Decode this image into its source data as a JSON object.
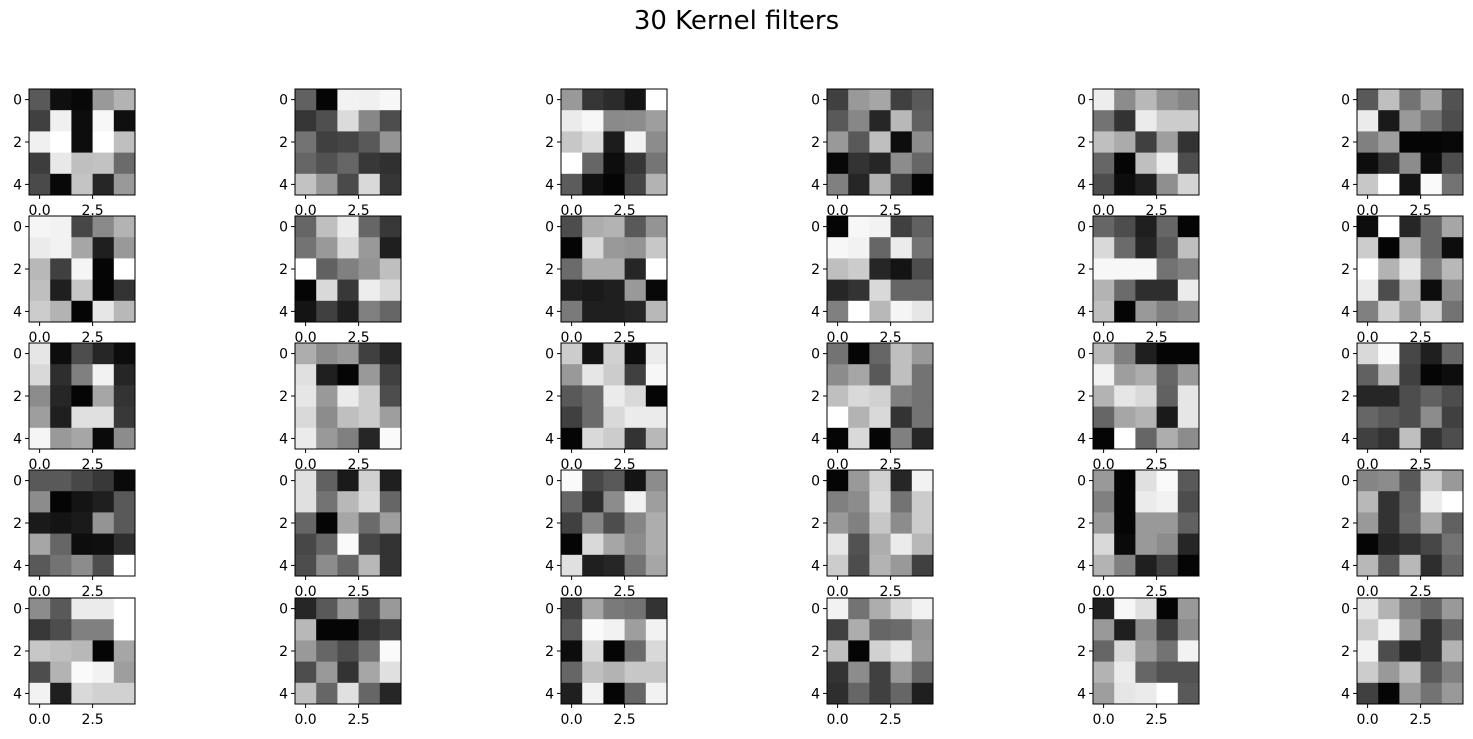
{
  "figure": {
    "title": "30 Kernel filters"
  },
  "chart_data": {
    "type": "heatmap",
    "title": "30 Kernel filters",
    "colormap": "gray",
    "grid": false,
    "subplot_layout": {
      "rows": 5,
      "cols": 6
    },
    "x_ticks": [
      "0.0",
      "2.5"
    ],
    "y_ticks": [
      "0",
      "2",
      "4"
    ],
    "xlim": [
      -0.5,
      4.5
    ],
    "ylim": [
      4.5,
      -0.5
    ],
    "value_range": [
      0,
      1
    ],
    "filters": [
      [
        [
          0.35,
          0.06,
          0.03,
          0.6,
          0.7
        ],
        [
          0.25,
          0.94,
          0.05,
          0.97,
          0.06
        ],
        [
          0.94,
          1.0,
          0.05,
          1.0,
          0.75
        ],
        [
          0.24,
          0.91,
          0.75,
          0.76,
          0.42
        ],
        [
          0.29,
          0.03,
          0.77,
          0.15,
          0.6
        ]
      ],
      [
        [
          0.38,
          0.02,
          0.95,
          0.94,
          0.97
        ],
        [
          0.21,
          0.31,
          0.86,
          0.53,
          0.3
        ],
        [
          0.45,
          0.25,
          0.27,
          0.35,
          0.58
        ],
        [
          0.4,
          0.32,
          0.4,
          0.22,
          0.19
        ],
        [
          0.76,
          0.59,
          0.29,
          0.85,
          0.21
        ]
      ],
      [
        [
          0.6,
          0.21,
          0.17,
          0.08,
          1.0
        ],
        [
          0.92,
          0.97,
          0.54,
          0.55,
          0.62
        ],
        [
          0.78,
          0.86,
          0.11,
          0.95,
          0.55
        ],
        [
          1.0,
          0.4,
          0.05,
          0.21,
          0.46
        ],
        [
          0.36,
          0.07,
          0.02,
          0.27,
          0.7
        ]
      ],
      [
        [
          0.25,
          0.6,
          0.65,
          0.25,
          0.35
        ],
        [
          0.35,
          0.53,
          0.15,
          0.72,
          0.38
        ],
        [
          0.6,
          0.35,
          0.75,
          0.05,
          0.55
        ],
        [
          0.03,
          0.2,
          0.15,
          0.55,
          0.4
        ],
        [
          0.5,
          0.15,
          0.7,
          0.25,
          0.02
        ]
      ],
      [
        [
          0.93,
          0.55,
          0.72,
          0.58,
          0.52
        ],
        [
          0.45,
          0.2,
          0.92,
          0.8,
          0.8
        ],
        [
          0.75,
          0.67,
          0.25,
          0.62,
          0.2
        ],
        [
          0.4,
          0.02,
          0.75,
          0.93,
          0.3
        ],
        [
          0.3,
          0.05,
          0.12,
          0.56,
          0.83
        ]
      ],
      [
        [
          0.35,
          0.75,
          0.45,
          0.65,
          0.32
        ],
        [
          0.92,
          0.1,
          0.6,
          0.45,
          0.3
        ],
        [
          0.5,
          0.62,
          0.02,
          0.02,
          0.03
        ],
        [
          0.05,
          0.2,
          0.55,
          0.05,
          0.3
        ],
        [
          0.78,
          1.0,
          0.08,
          0.98,
          0.45
        ]
      ],
      [
        [
          0.96,
          0.95,
          0.28,
          0.54,
          0.7
        ],
        [
          0.92,
          0.95,
          0.65,
          0.12,
          0.6
        ],
        [
          0.72,
          0.25,
          0.96,
          0.02,
          1.0
        ],
        [
          0.75,
          0.12,
          0.78,
          0.02,
          0.2
        ],
        [
          0.8,
          0.7,
          0.02,
          0.9,
          0.72
        ]
      ],
      [
        [
          0.4,
          0.75,
          0.92,
          0.4,
          0.22
        ],
        [
          0.45,
          0.6,
          0.85,
          0.6,
          0.12
        ],
        [
          1.0,
          0.38,
          0.5,
          0.58,
          0.75
        ],
        [
          0.02,
          0.85,
          0.22,
          0.93,
          0.85
        ],
        [
          0.08,
          0.25,
          0.12,
          0.5,
          0.4
        ]
      ],
      [
        [
          0.3,
          0.68,
          0.7,
          0.35,
          0.58
        ],
        [
          0.02,
          0.85,
          0.6,
          0.58,
          0.78
        ],
        [
          0.42,
          0.68,
          0.68,
          0.15,
          1.0
        ],
        [
          0.12,
          0.1,
          0.12,
          0.6,
          0.03
        ],
        [
          0.48,
          0.12,
          0.12,
          0.15,
          0.72
        ]
      ],
      [
        [
          0.02,
          0.97,
          0.95,
          0.25,
          0.38
        ],
        [
          0.97,
          0.95,
          0.4,
          0.92,
          0.45
        ],
        [
          0.75,
          0.8,
          0.15,
          0.08,
          0.3
        ],
        [
          0.15,
          0.2,
          0.85,
          0.4,
          0.4
        ],
        [
          0.5,
          1.0,
          0.72,
          0.96,
          0.9
        ]
      ],
      [
        [
          0.4,
          0.3,
          0.12,
          0.4,
          0.02
        ],
        [
          0.85,
          0.42,
          0.15,
          0.35,
          0.75
        ],
        [
          0.97,
          0.97,
          0.97,
          0.45,
          0.5
        ],
        [
          0.7,
          0.42,
          0.18,
          0.18,
          0.92
        ],
        [
          0.75,
          0.02,
          0.6,
          0.5,
          0.55
        ]
      ],
      [
        [
          0.05,
          1.0,
          0.15,
          0.4,
          0.65
        ],
        [
          0.8,
          0.02,
          0.7,
          0.4,
          0.05
        ],
        [
          1.0,
          0.7,
          0.9,
          0.5,
          0.72
        ],
        [
          0.92,
          0.3,
          0.72,
          0.05,
          0.55
        ],
        [
          0.5,
          0.82,
          0.6,
          0.82,
          0.45
        ]
      ],
      [
        [
          0.9,
          0.05,
          0.3,
          0.15,
          0.05
        ],
        [
          0.85,
          0.18,
          0.5,
          0.95,
          0.15
        ],
        [
          0.55,
          0.15,
          0.02,
          0.65,
          0.2
        ],
        [
          0.62,
          0.12,
          0.88,
          0.88,
          0.22
        ],
        [
          0.96,
          0.6,
          0.65,
          0.04,
          0.55
        ]
      ],
      [
        [
          0.68,
          0.55,
          0.6,
          0.25,
          0.15
        ],
        [
          0.88,
          0.12,
          0.02,
          0.6,
          0.25
        ],
        [
          0.9,
          0.6,
          0.92,
          0.8,
          0.3
        ],
        [
          0.85,
          0.55,
          0.75,
          0.8,
          0.62
        ],
        [
          0.92,
          0.6,
          0.5,
          0.15,
          0.98
        ]
      ],
      [
        [
          0.8,
          0.08,
          0.82,
          0.05,
          0.92
        ],
        [
          0.6,
          0.9,
          0.8,
          0.25,
          0.97
        ],
        [
          0.35,
          0.42,
          0.92,
          0.85,
          0.02
        ],
        [
          0.25,
          0.42,
          0.85,
          0.92,
          0.92
        ],
        [
          0.02,
          0.85,
          0.8,
          0.2,
          0.72
        ]
      ],
      [
        [
          0.45,
          0.02,
          0.4,
          0.75,
          0.6
        ],
        [
          0.55,
          0.65,
          0.35,
          0.75,
          0.45
        ],
        [
          0.75,
          0.85,
          0.82,
          0.5,
          0.45
        ],
        [
          1.0,
          0.7,
          0.85,
          0.2,
          0.45
        ],
        [
          0.02,
          0.85,
          0.02,
          0.5,
          0.15
        ]
      ],
      [
        [
          0.72,
          0.5,
          0.12,
          0.02,
          0.02
        ],
        [
          0.95,
          0.62,
          0.68,
          0.4,
          0.6
        ],
        [
          0.7,
          0.9,
          0.85,
          0.38,
          0.9
        ],
        [
          0.4,
          0.65,
          0.7,
          0.1,
          0.9
        ],
        [
          0.02,
          1.0,
          0.4,
          0.68,
          0.55
        ]
      ],
      [
        [
          0.85,
          0.98,
          0.28,
          0.12,
          0.4
        ],
        [
          0.38,
          0.72,
          0.25,
          0.02,
          0.05
        ],
        [
          0.15,
          0.15,
          0.3,
          0.38,
          0.3
        ],
        [
          0.4,
          0.35,
          0.3,
          0.55,
          0.25
        ],
        [
          0.25,
          0.2,
          0.75,
          0.2,
          0.3
        ]
      ],
      [
        [
          0.35,
          0.35,
          0.28,
          0.22,
          0.04
        ],
        [
          0.55,
          0.02,
          0.08,
          0.12,
          0.35
        ],
        [
          0.1,
          0.08,
          0.1,
          0.58,
          0.35
        ],
        [
          0.65,
          0.4,
          0.05,
          0.06,
          0.18
        ],
        [
          0.35,
          0.45,
          0.55,
          0.3,
          1.0
        ]
      ],
      [
        [
          0.88,
          0.38,
          0.1,
          0.82,
          0.12
        ],
        [
          0.88,
          0.45,
          0.72,
          0.85,
          0.4
        ],
        [
          0.4,
          0.02,
          0.65,
          0.42,
          0.62
        ],
        [
          0.28,
          0.4,
          0.98,
          0.28,
          0.2
        ],
        [
          0.3,
          0.55,
          0.4,
          0.72,
          0.2
        ]
      ],
      [
        [
          0.98,
          0.28,
          0.35,
          0.08,
          0.55
        ],
        [
          0.4,
          0.18,
          0.55,
          0.95,
          0.62
        ],
        [
          0.25,
          0.52,
          0.3,
          0.52,
          0.68
        ],
        [
          0.02,
          0.85,
          0.65,
          0.55,
          0.68
        ],
        [
          0.88,
          0.12,
          0.15,
          0.45,
          0.65
        ]
      ],
      [
        [
          0.02,
          0.6,
          0.82,
          0.15,
          0.95
        ],
        [
          0.5,
          0.55,
          0.85,
          0.45,
          0.8
        ],
        [
          0.6,
          0.5,
          0.78,
          0.55,
          0.8
        ],
        [
          0.9,
          0.32,
          0.68,
          0.92,
          0.72
        ],
        [
          0.8,
          0.3,
          0.7,
          0.6,
          0.25
        ]
      ],
      [
        [
          0.6,
          0.02,
          0.88,
          0.98,
          0.35
        ],
        [
          0.5,
          0.02,
          0.92,
          0.95,
          0.3
        ],
        [
          0.6,
          0.02,
          0.6,
          0.6,
          0.38
        ],
        [
          0.85,
          0.04,
          0.6,
          0.55,
          0.15
        ],
        [
          0.7,
          0.5,
          0.12,
          0.25,
          0.02
        ]
      ],
      [
        [
          0.52,
          0.55,
          0.35,
          0.8,
          0.6
        ],
        [
          0.72,
          0.2,
          0.4,
          0.92,
          1.0
        ],
        [
          0.6,
          0.2,
          0.42,
          0.65,
          0.38
        ],
        [
          0.02,
          0.15,
          0.2,
          0.28,
          0.45
        ],
        [
          0.72,
          0.35,
          0.72,
          0.18,
          0.4
        ]
      ],
      [
        [
          0.55,
          0.35,
          0.92,
          0.92,
          1.0
        ],
        [
          0.22,
          0.3,
          0.5,
          0.5,
          1.0
        ],
        [
          0.78,
          0.75,
          0.72,
          0.02,
          0.65
        ],
        [
          0.3,
          0.7,
          0.98,
          0.95,
          0.62
        ],
        [
          0.95,
          0.12,
          0.85,
          0.82,
          0.82
        ]
      ],
      [
        [
          0.15,
          0.35,
          0.6,
          0.3,
          0.6
        ],
        [
          0.72,
          0.02,
          0.02,
          0.2,
          0.25
        ],
        [
          0.6,
          0.4,
          0.3,
          0.45,
          0.98
        ],
        [
          0.3,
          0.6,
          0.2,
          0.65,
          0.88
        ],
        [
          0.75,
          0.4,
          0.88,
          0.4,
          0.15
        ]
      ],
      [
        [
          0.25,
          0.65,
          0.48,
          0.45,
          0.2
        ],
        [
          0.35,
          0.98,
          0.95,
          0.62,
          0.95
        ],
        [
          0.05,
          0.85,
          0.02,
          0.42,
          0.85
        ],
        [
          0.4,
          0.75,
          0.7,
          0.78,
          0.78
        ],
        [
          0.12,
          0.95,
          0.02,
          0.4,
          0.95
        ]
      ],
      [
        [
          0.95,
          0.45,
          0.68,
          0.85,
          0.95
        ],
        [
          0.25,
          0.68,
          0.4,
          0.42,
          0.58
        ],
        [
          0.75,
          0.02,
          0.82,
          0.9,
          0.6
        ],
        [
          0.2,
          0.55,
          0.25,
          0.6,
          0.4
        ],
        [
          0.18,
          0.4,
          0.25,
          0.4,
          0.12
        ]
      ],
      [
        [
          0.12,
          0.97,
          0.88,
          0.02,
          0.6
        ],
        [
          0.6,
          0.12,
          0.55,
          0.25,
          0.55
        ],
        [
          0.4,
          0.85,
          0.6,
          0.45,
          0.95
        ],
        [
          0.7,
          0.92,
          0.4,
          0.32,
          0.32
        ],
        [
          0.62,
          0.9,
          0.92,
          1.0,
          0.35
        ]
      ],
      [
        [
          0.9,
          0.7,
          0.5,
          0.4,
          0.6
        ],
        [
          0.8,
          0.95,
          0.6,
          0.2,
          0.4
        ],
        [
          0.95,
          0.3,
          0.15,
          0.2,
          0.7
        ],
        [
          0.8,
          0.6,
          0.75,
          0.35,
          0.5
        ],
        [
          0.25,
          0.02,
          0.6,
          0.45,
          0.6
        ]
      ]
    ]
  }
}
